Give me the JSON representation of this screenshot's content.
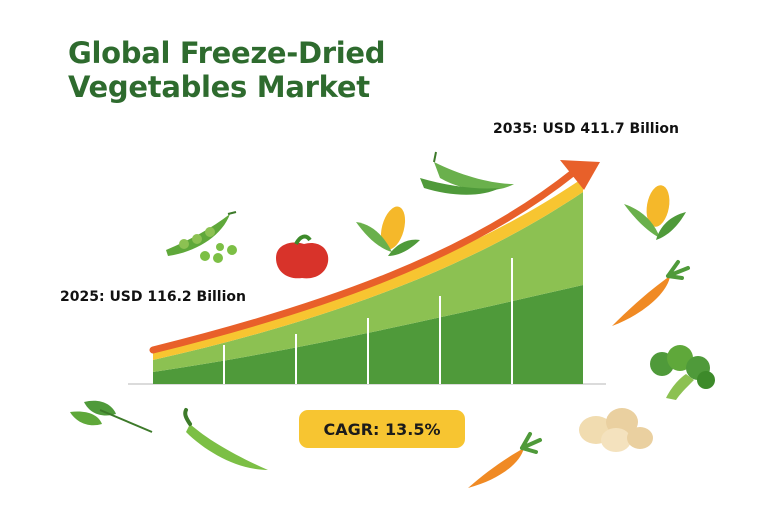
{
  "title_line1": "Global Freeze-Dried",
  "title_line2": "Vegetables Market",
  "cagr_label": "CAGR: 13.5%",
  "chart_data": {
    "type": "area",
    "title": "Global Freeze-Dried Vegetables Market",
    "x": [
      2025,
      2035
    ],
    "values": [
      116.2,
      411.7
    ],
    "unit": "USD Billion",
    "annotations": [
      "2025: USD 116.2 Billion",
      "2035: USD 411.7 Billion"
    ],
    "cagr": "13.5%",
    "colors": {
      "trend_arrow": "#e8602a",
      "band": "#f7c531",
      "area_light": "#8cc152",
      "area_dark": "#4f9a3a"
    }
  }
}
